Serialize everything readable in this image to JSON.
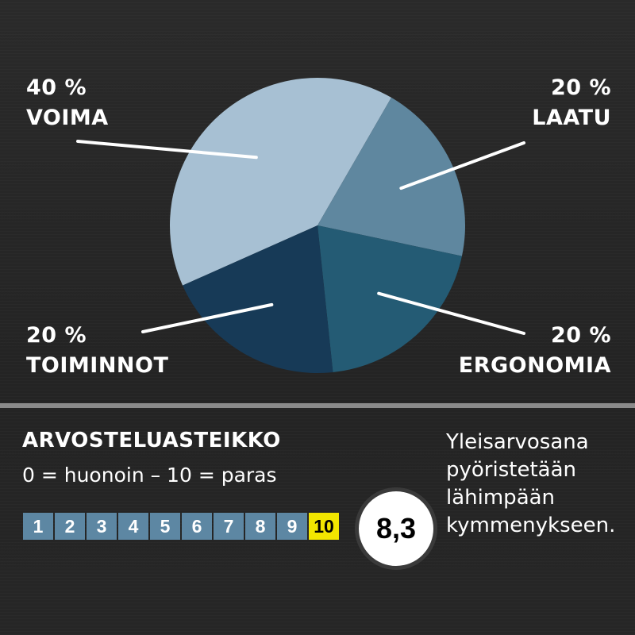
{
  "chart_data": {
    "type": "pie",
    "slices": [
      {
        "label": "VOIMA",
        "percent_label": "40 %",
        "value": 40,
        "color": "#a7c0d3"
      },
      {
        "label": "LAATU",
        "percent_label": "20 %",
        "value": 20,
        "color": "#5f879f"
      },
      {
        "label": "ERGONOMIA",
        "percent_label": "20 %",
        "value": 20,
        "color": "#245b74"
      },
      {
        "label": "TOIMINNOT",
        "percent_label": "20 %",
        "value": 20,
        "color": "#173a57"
      }
    ]
  },
  "scale": {
    "title": "ARVOSTELUASTEIKKO",
    "subtitle": "0 = huonoin – 10 = paras",
    "cells": [
      "1",
      "2",
      "3",
      "4",
      "5",
      "6",
      "7",
      "8",
      "9",
      "10"
    ],
    "highlighted": "10"
  },
  "score": "8,3",
  "note_lines": [
    "Yleisarvosana",
    "pyöristetään",
    "lähimpään",
    "kymmenykseen."
  ]
}
